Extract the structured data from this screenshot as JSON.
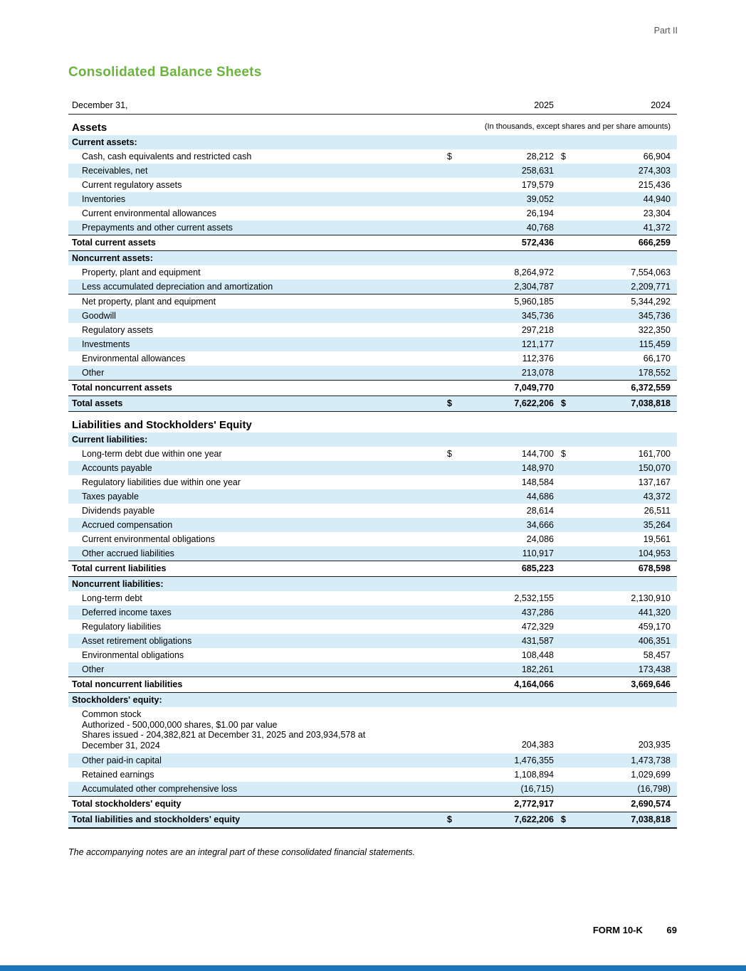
{
  "page": {
    "part_label": "Part II",
    "title": "Consolidated Balance Sheets",
    "footer_note": "The accompanying notes are an integral part of these consolidated financial statements.",
    "form_label": "FORM 10-K",
    "page_number": "69"
  },
  "colors": {
    "title_green": "#6cb33e",
    "row_blue": "#d6ecf7",
    "bottom_bar_blue": "#1c75bc",
    "part_label_gray": "#55565a"
  },
  "table": {
    "currency_symbol": "$",
    "header": {
      "label": "December 31,",
      "col1": "2025",
      "col2": "2024"
    },
    "rows": [
      {
        "type": "group",
        "label": "Assets",
        "note": "(In thousands, except shares and per share amounts)"
      },
      {
        "type": "section",
        "label": "Current assets:"
      },
      {
        "type": "item",
        "label": "Cash, cash equivalents and restricted cash",
        "dollar": true,
        "v1": "28,212",
        "v2": "66,904",
        "shaded": false
      },
      {
        "type": "item",
        "label": "Receivables, net",
        "v1": "258,631",
        "v2": "274,303",
        "shaded": true
      },
      {
        "type": "item",
        "label": "Current regulatory assets",
        "v1": "179,579",
        "v2": "215,436",
        "shaded": false
      },
      {
        "type": "item",
        "label": "Inventories",
        "v1": "39,052",
        "v2": "44,940",
        "shaded": true
      },
      {
        "type": "item",
        "label": "Current environmental allowances",
        "v1": "26,194",
        "v2": "23,304",
        "shaded": false
      },
      {
        "type": "item",
        "label": "Prepayments and other current assets",
        "v1": "40,768",
        "v2": "41,372",
        "shaded": true
      },
      {
        "type": "total",
        "label": "Total current assets",
        "v1": "572,436",
        "v2": "666,259",
        "border_top": true,
        "border_bottom": true
      },
      {
        "type": "section",
        "label": "Noncurrent assets:"
      },
      {
        "type": "item",
        "label": "Property, plant and equipment",
        "v1": "8,264,972",
        "v2": "7,554,063",
        "shaded": false
      },
      {
        "type": "item",
        "label": "Less accumulated depreciation and amortization",
        "v1": "2,304,787",
        "v2": "2,209,771",
        "shaded": true,
        "border_bottom": true
      },
      {
        "type": "item",
        "label": "Net property, plant and equipment",
        "v1": "5,960,185",
        "v2": "5,344,292",
        "shaded": false
      },
      {
        "type": "item",
        "label": "Goodwill",
        "v1": "345,736",
        "v2": "345,736",
        "shaded": true
      },
      {
        "type": "item",
        "label": "Regulatory assets",
        "v1": "297,218",
        "v2": "322,350",
        "shaded": false
      },
      {
        "type": "item",
        "label": "Investments",
        "v1": "121,177",
        "v2": "115,459",
        "shaded": true
      },
      {
        "type": "item",
        "label": "Environmental allowances",
        "v1": "112,376",
        "v2": "66,170",
        "shaded": false
      },
      {
        "type": "item",
        "label": "Other",
        "v1": "213,078",
        "v2": "178,552",
        "shaded": true
      },
      {
        "type": "total",
        "label": "Total noncurrent assets",
        "v1": "7,049,770",
        "v2": "6,372,559",
        "border_top": true,
        "border_bottom": true
      },
      {
        "type": "total",
        "label": "Total assets",
        "dollar": true,
        "v1": "7,622,206",
        "v2": "7,038,818",
        "shaded": true,
        "border_bottom": true
      },
      {
        "type": "group",
        "label": "Liabilities and Stockholders' Equity"
      },
      {
        "type": "section",
        "label": "Current liabilities:"
      },
      {
        "type": "item",
        "label": "Long-term debt due within one year",
        "dollar": true,
        "v1": "144,700",
        "v2": "161,700",
        "shaded": false
      },
      {
        "type": "item",
        "label": "Accounts payable",
        "v1": "148,970",
        "v2": "150,070",
        "shaded": true
      },
      {
        "type": "item",
        "label": "Regulatory liabilities due within one year",
        "v1": "148,584",
        "v2": "137,167",
        "shaded": false
      },
      {
        "type": "item",
        "label": "Taxes payable",
        "v1": "44,686",
        "v2": "43,372",
        "shaded": true
      },
      {
        "type": "item",
        "label": "Dividends payable",
        "v1": "28,614",
        "v2": "26,511",
        "shaded": false
      },
      {
        "type": "item",
        "label": "Accrued compensation",
        "v1": "34,666",
        "v2": "35,264",
        "shaded": true
      },
      {
        "type": "item",
        "label": "Current environmental obligations",
        "v1": "24,086",
        "v2": "19,561",
        "shaded": false
      },
      {
        "type": "item",
        "label": "Other accrued liabilities",
        "v1": "110,917",
        "v2": "104,953",
        "shaded": true
      },
      {
        "type": "total",
        "label": "Total current liabilities",
        "v1": "685,223",
        "v2": "678,598",
        "border_top": true,
        "border_bottom": true
      },
      {
        "type": "section",
        "label": "Noncurrent liabilities:"
      },
      {
        "type": "item",
        "label": "Long-term debt",
        "v1": "2,532,155",
        "v2": "2,130,910",
        "shaded": false
      },
      {
        "type": "item",
        "label": "Deferred income taxes",
        "v1": "437,286",
        "v2": "441,320",
        "shaded": true
      },
      {
        "type": "item",
        "label": "Regulatory liabilities",
        "v1": "472,329",
        "v2": "459,170",
        "shaded": false
      },
      {
        "type": "item",
        "label": "Asset retirement obligations",
        "v1": "431,587",
        "v2": "406,351",
        "shaded": true
      },
      {
        "type": "item",
        "label": "Environmental obligations",
        "v1": "108,448",
        "v2": "58,457",
        "shaded": false
      },
      {
        "type": "item",
        "label": "Other",
        "v1": "182,261",
        "v2": "173,438",
        "shaded": true
      },
      {
        "type": "total",
        "label": "Total noncurrent liabilities",
        "v1": "4,164,066",
        "v2": "3,669,646",
        "border_top": true,
        "border_bottom": true
      },
      {
        "type": "section",
        "label": "Stockholders' equity:"
      },
      {
        "type": "item",
        "label_lines": [
          "Common stock",
          "Authorized - 500,000,000 shares, $1.00 par value",
          "Shares issued - 204,382,821 at December 31, 2025 and 203,934,578 at",
          "December 31, 2024"
        ],
        "v1": "204,383",
        "v2": "203,935",
        "shaded": false
      },
      {
        "type": "item",
        "label": "Other paid-in capital",
        "v1": "1,476,355",
        "v2": "1,473,738",
        "shaded": true
      },
      {
        "type": "item",
        "label": "Retained earnings",
        "v1": "1,108,894",
        "v2": "1,029,699",
        "shaded": false
      },
      {
        "type": "item",
        "label": "Accumulated other comprehensive loss",
        "v1": "(16,715)",
        "v2": "(16,798)",
        "shaded": true
      },
      {
        "type": "total",
        "label": "Total stockholders' equity",
        "v1": "2,772,917",
        "v2": "2,690,574",
        "border_top": true,
        "border_bottom": true
      },
      {
        "type": "total",
        "label": "Total liabilities and stockholders' equity",
        "dollar": true,
        "v1": "7,622,206",
        "v2": "7,038,818",
        "shaded": true,
        "thick_bottom": true
      }
    ]
  }
}
